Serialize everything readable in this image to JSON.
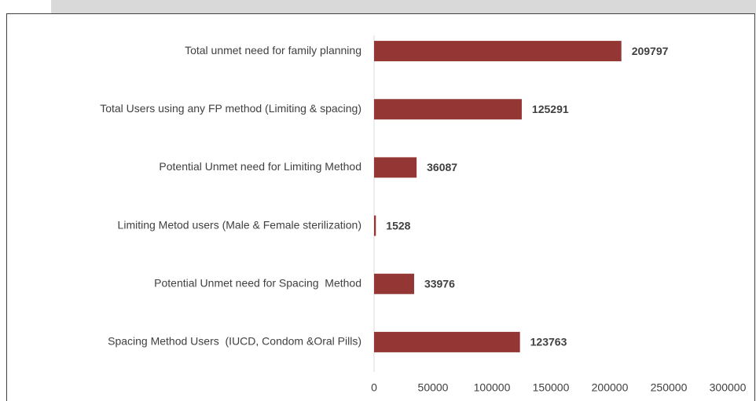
{
  "chart_data": {
    "type": "bar",
    "orientation": "horizontal",
    "categories": [
      "Total unmet need for family planning",
      "Total Users using any FP method (Limiting & spacing)",
      "Potential Unmet need for Limiting Method",
      "Limiting Metod users (Male & Female sterilization)",
      "Potential Unmet need for Spacing  Method",
      "Spacing Method Users  (IUCD, Condom &Oral Pills)"
    ],
    "values": [
      209797,
      125291,
      36087,
      1528,
      33976,
      123763
    ],
    "color": "#943634",
    "xlim": [
      0,
      300000
    ],
    "xticks": [
      0,
      50000,
      100000,
      150000,
      200000,
      250000,
      300000
    ],
    "grid": false
  }
}
